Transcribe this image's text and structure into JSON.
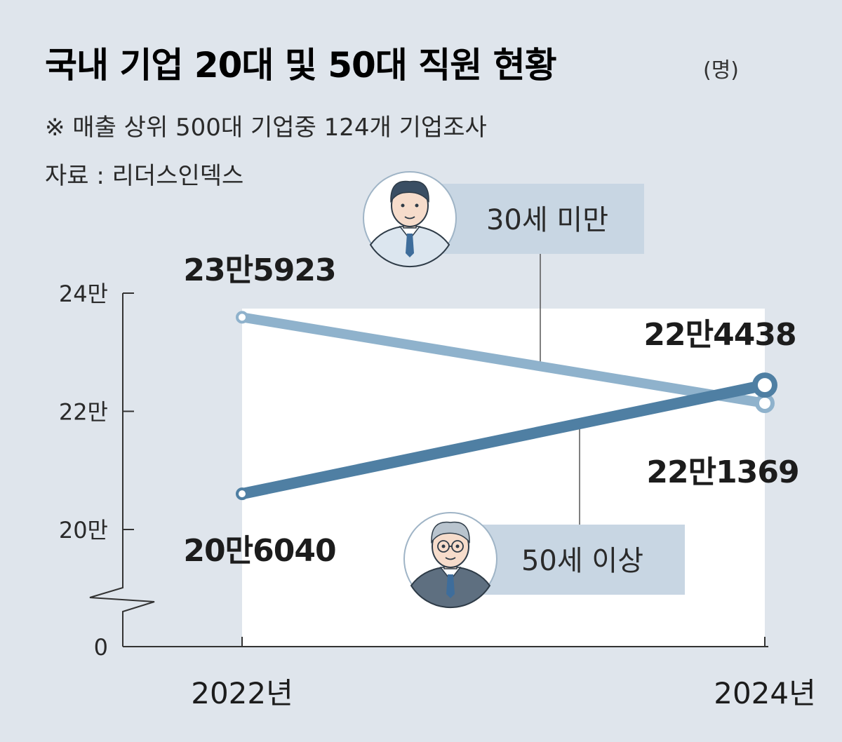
{
  "title": "국내 기업 20대 및 50대 직원 현황",
  "unit": "(명)",
  "note": "※ 매출 상위 500대 기업중 124개 기업조사",
  "source": "자료 : 리더스인덱스",
  "icons": {
    "young": "young-man-icon",
    "old": "older-man-with-glasses-icon"
  },
  "colors": {
    "background": "#dfe5ec",
    "plot_area": "#ffffff",
    "series_young": "#8fb2cc",
    "series_old": "#4f7fa3",
    "label_box": "#c8d6e3"
  },
  "chart_data": {
    "type": "line",
    "title": "국내 기업 20대 및 50대 직원 현황",
    "unit": "(명)",
    "categories": [
      "2022년",
      "2024년"
    ],
    "y_ticks": [
      {
        "value": 0,
        "label": "0"
      },
      {
        "value": 200000,
        "label": "20만"
      },
      {
        "value": 220000,
        "label": "22만"
      },
      {
        "value": 240000,
        "label": "24만"
      }
    ],
    "y_axis_break": true,
    "series": [
      {
        "name": "30세 미만",
        "values": [
          235923,
          221369
        ],
        "labels": [
          "23만5923",
          "22만1369"
        ],
        "color": "#8fb2cc",
        "icon": "young-man-icon"
      },
      {
        "name": "50세 이상",
        "values": [
          206040,
          224438
        ],
        "labels": [
          "20만6040",
          "22만4438"
        ],
        "color": "#4f7fa3",
        "icon": "older-man-with-glasses-icon"
      }
    ]
  }
}
